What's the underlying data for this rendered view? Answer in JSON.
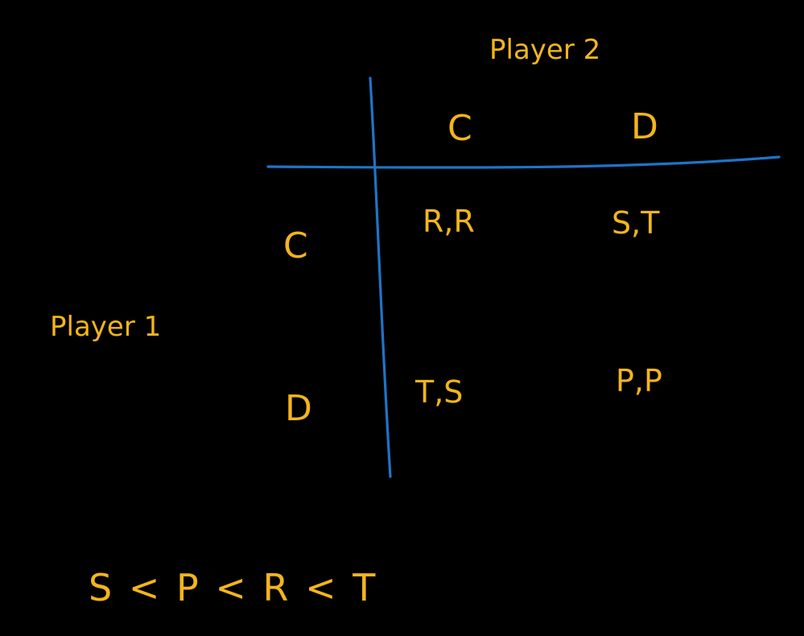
{
  "colors": {
    "background": "#000000",
    "ink": "#f2b51c",
    "grid_line": "#1f74c7"
  },
  "player2_label": "Player 2",
  "player1_label": "Player 1",
  "column_headers": [
    "C",
    "D"
  ],
  "row_headers": [
    "C",
    "D"
  ],
  "payoffs": [
    [
      "R,R",
      "S,T"
    ],
    [
      "T,S",
      "P,P"
    ]
  ],
  "ordering": "S < P < R < T"
}
